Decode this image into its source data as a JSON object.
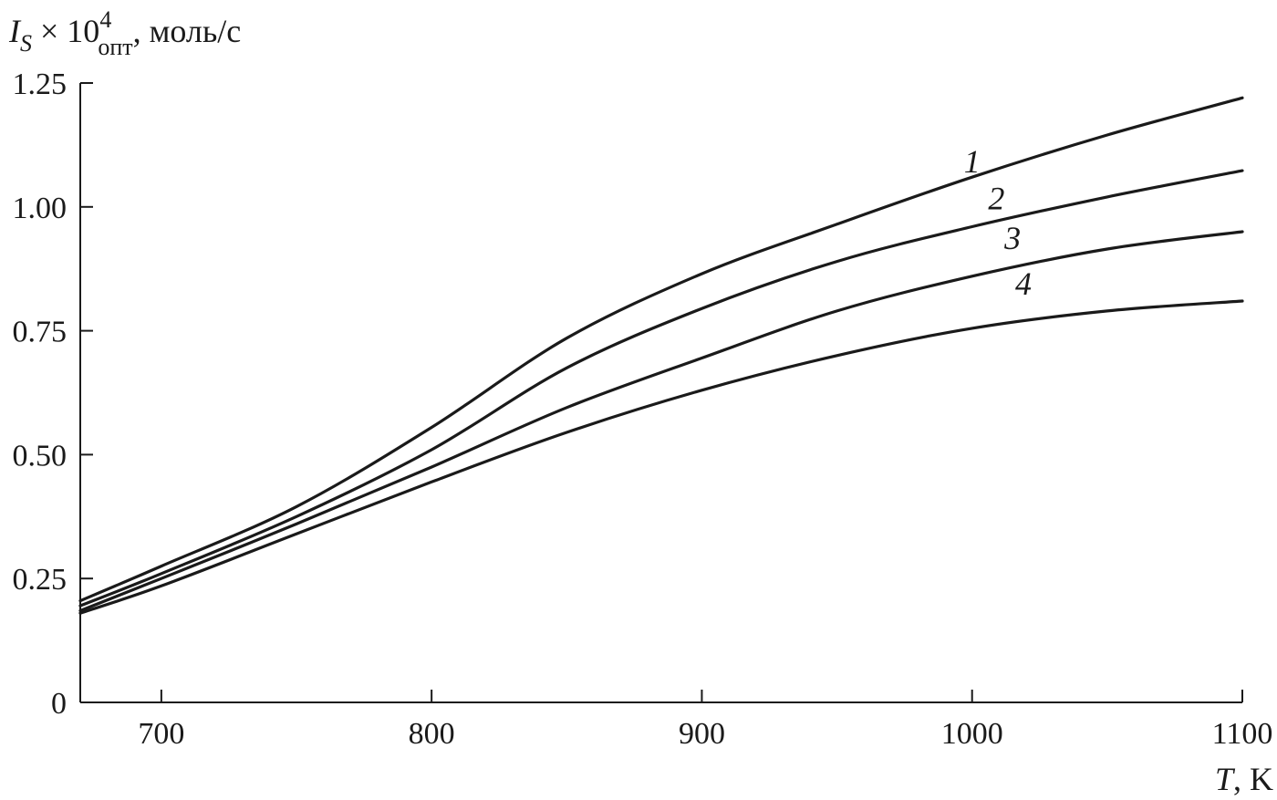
{
  "chart_data": {
    "type": "line",
    "ylabel": {
      "symbol": "I",
      "symbol_sub": "S",
      "times": " × 10",
      "power": "4",
      "power_sub": "опт",
      "unit": ",  моль/с"
    },
    "xlabel": {
      "symbol": "T",
      "unit": ", K"
    },
    "xlim": [
      670,
      1100
    ],
    "ylim": [
      0,
      1.25
    ],
    "xticks": [
      700,
      800,
      900,
      1000,
      1100
    ],
    "xtick_labels": [
      "700",
      "800",
      "900",
      "1000",
      "1100"
    ],
    "yticks": [
      0,
      0.25,
      0.5,
      0.75,
      1.0,
      1.25
    ],
    "ytick_labels": [
      "0",
      "0.25",
      "0.50",
      "0.75",
      "1.00",
      "1.25"
    ],
    "grid": false,
    "line_color": "#1a1a1a",
    "series": [
      {
        "name": "1",
        "label_at": [
          1000,
          1.07
        ],
        "x": [
          670,
          700,
          750,
          800,
          850,
          900,
          950,
          1000,
          1050,
          1100
        ],
        "y": [
          0.205,
          0.275,
          0.395,
          0.555,
          0.735,
          0.865,
          0.965,
          1.06,
          1.145,
          1.22
        ]
      },
      {
        "name": "2",
        "label_at": [
          1009,
          0.995
        ],
        "x": [
          670,
          700,
          750,
          800,
          850,
          900,
          950,
          1000,
          1050,
          1100
        ],
        "y": [
          0.195,
          0.26,
          0.375,
          0.51,
          0.675,
          0.795,
          0.89,
          0.96,
          1.02,
          1.073
        ]
      },
      {
        "name": "3",
        "label_at": [
          1015,
          0.915
        ],
        "x": [
          670,
          700,
          750,
          800,
          850,
          900,
          950,
          1000,
          1050,
          1100
        ],
        "y": [
          0.185,
          0.25,
          0.36,
          0.475,
          0.595,
          0.695,
          0.79,
          0.86,
          0.915,
          0.95
        ]
      },
      {
        "name": "4",
        "label_at": [
          1019,
          0.823
        ],
        "x": [
          670,
          700,
          750,
          800,
          850,
          900,
          950,
          1000,
          1050,
          1100
        ],
        "y": [
          0.18,
          0.235,
          0.34,
          0.445,
          0.545,
          0.63,
          0.7,
          0.755,
          0.79,
          0.81
        ]
      }
    ]
  }
}
